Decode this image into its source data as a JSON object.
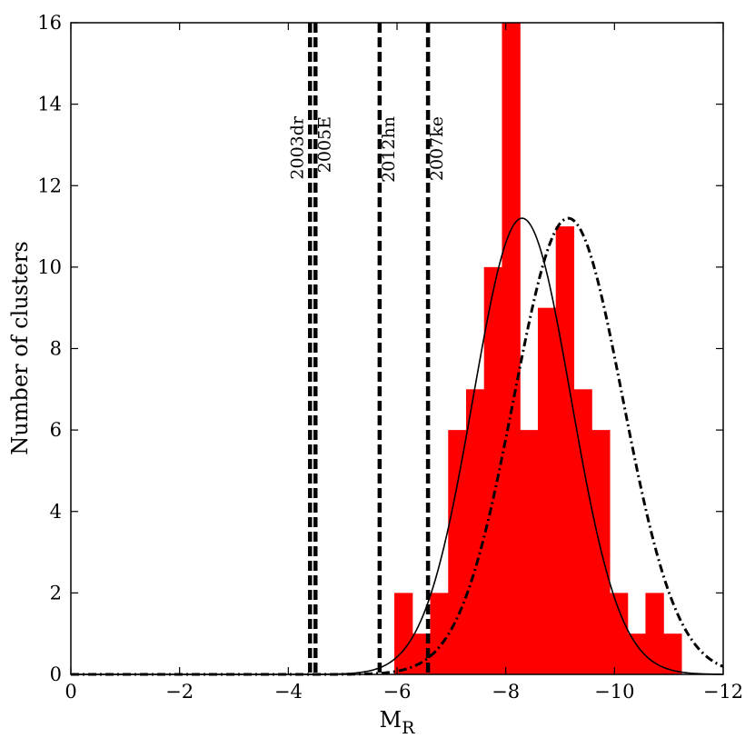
{
  "chart_data": {
    "type": "bar",
    "title": "",
    "xlabel": "M",
    "xlabel_sub": "R",
    "ylabel": "Number of clusters",
    "xlim": [
      0,
      -12
    ],
    "ylim": [
      0,
      16
    ],
    "x_ticks": [
      0,
      -2,
      -4,
      -6,
      -8,
      -10,
      -12
    ],
    "x_tick_labels": [
      "0",
      "−2",
      "−4",
      "−6",
      "−8",
      "−10",
      "−12"
    ],
    "y_ticks": [
      0,
      2,
      4,
      6,
      8,
      10,
      12,
      14,
      16
    ],
    "y_tick_labels": [
      "0",
      "2",
      "4",
      "6",
      "8",
      "10",
      "12",
      "14",
      "16"
    ],
    "grid": false,
    "histogram": {
      "color": "#ff0000",
      "bin_width": -0.33,
      "bins": [
        {
          "x0": -5.95,
          "count": 2
        },
        {
          "x0": -6.28,
          "count": 1
        },
        {
          "x0": -6.61,
          "count": 2
        },
        {
          "x0": -6.94,
          "count": 6
        },
        {
          "x0": -7.27,
          "count": 7
        },
        {
          "x0": -7.6,
          "count": 10
        },
        {
          "x0": -7.93,
          "count": 16
        },
        {
          "x0": -8.26,
          "count": 6
        },
        {
          "x0": -8.59,
          "count": 9
        },
        {
          "x0": -8.92,
          "count": 11
        },
        {
          "x0": -9.25,
          "count": 7
        },
        {
          "x0": -9.58,
          "count": 6
        },
        {
          "x0": -9.91,
          "count": 2
        },
        {
          "x0": -10.24,
          "count": 1
        },
        {
          "x0": -10.57,
          "count": 2
        },
        {
          "x0": -10.9,
          "count": 1
        }
      ]
    },
    "series": [
      {
        "style": "solid",
        "color": "#000000",
        "mean": -8.3,
        "sigma": 0.9,
        "peak": 11.2
      },
      {
        "style": "dashdot",
        "color": "#000000",
        "mean": -9.15,
        "sigma": 1.0,
        "peak": 11.2
      }
    ],
    "vlines": [
      {
        "x": -4.4,
        "label": "2003dr",
        "label_side": "left"
      },
      {
        "x": -4.5,
        "label": "2005E",
        "label_side": "right"
      },
      {
        "x": -5.68,
        "label": "2012hn",
        "label_side": "right"
      },
      {
        "x": -6.57,
        "label": "2007ke",
        "label_side": "right"
      }
    ]
  }
}
